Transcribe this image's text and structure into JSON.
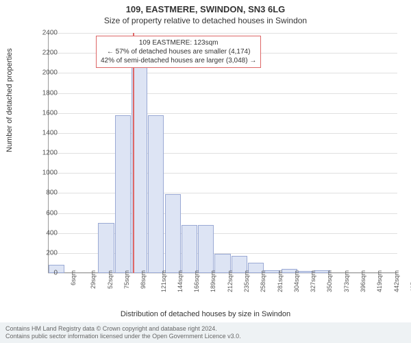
{
  "title_line1": "109, EASTMERE, SWINDON, SN3 6LG",
  "title_line2": "Size of property relative to detached houses in Swindon",
  "ylabel": "Number of detached properties",
  "xlabel": "Distribution of detached houses by size in Swindon",
  "footer_line1": "Contains HM Land Registry data © Crown copyright and database right 2024.",
  "footer_line2": "Contains public sector information licensed under the Open Government Licence v3.0.",
  "chart": {
    "type": "histogram",
    "background_color": "#ffffff",
    "grid_color": "#e0e0e0",
    "axis_color": "#999999",
    "bar_fill": "#dde4f4",
    "bar_border": "#9aa9d4",
    "marker_color": "#d66",
    "ylim": [
      0,
      2400
    ],
    "ytick_step": 200,
    "xticks": [
      "6sqm",
      "29sqm",
      "52sqm",
      "75sqm",
      "98sqm",
      "121sqm",
      "144sqm",
      "166sqm",
      "189sqm",
      "212sqm",
      "235sqm",
      "258sqm",
      "281sqm",
      "304sqm",
      "327sqm",
      "350sqm",
      "373sqm",
      "396sqm",
      "419sqm",
      "442sqm",
      "465sqm"
    ],
    "xtick_fontsize": 9,
    "ytick_fontsize": 10,
    "bars": [
      80,
      0,
      0,
      500,
      1580,
      2180,
      1580,
      790,
      480,
      480,
      190,
      170,
      100,
      30,
      40,
      20,
      30,
      0,
      0,
      0,
      0
    ],
    "bar_count": 21,
    "marker_value": 123,
    "x_min": 6,
    "x_max": 488,
    "annotation": {
      "line1": "109 EASTMERE: 123sqm",
      "line2": "← 57% of detached houses are smaller (4,174)",
      "line3": "42% of semi-detached houses are larger (3,048) →",
      "border_color": "#d66",
      "background": "#ffffff",
      "fontsize": 10
    }
  }
}
